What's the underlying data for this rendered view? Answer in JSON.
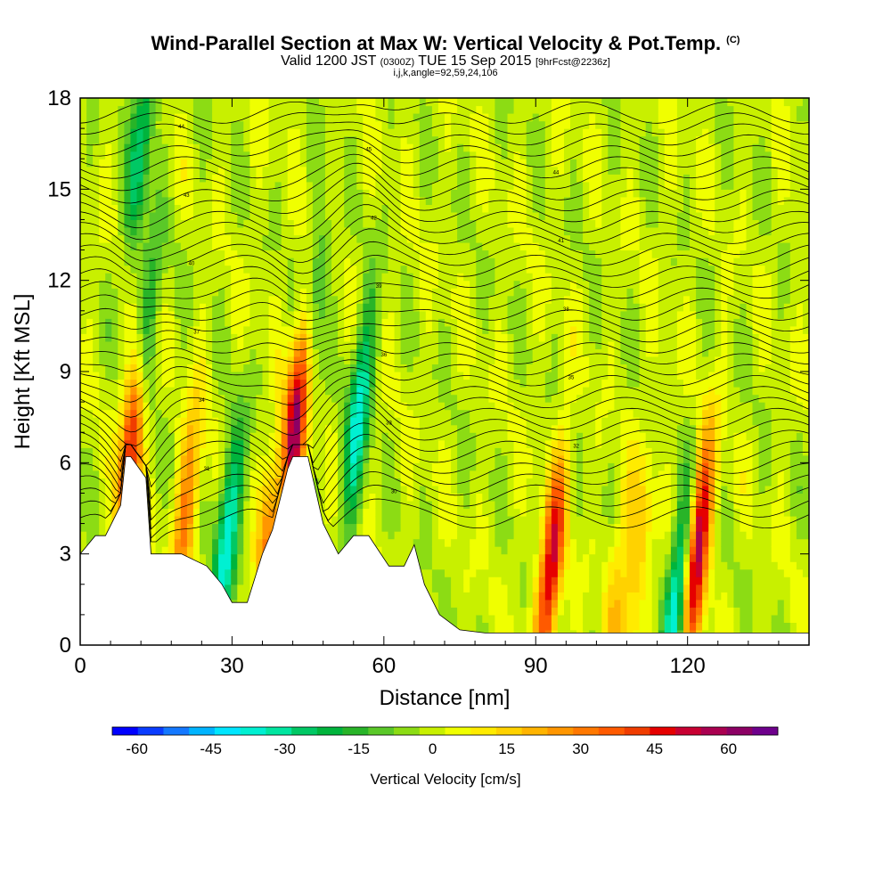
{
  "header": {
    "title": "Wind-Parallel Section at Max W: Vertical Velocity & Pot.Temp.",
    "copyright": "(C)",
    "valid_main": "Valid 1200 JST",
    "valid_z": "(0300Z)",
    "valid_date": "TUE 15 Sep 2015",
    "valid_fcst": "[9hrFcst@2236z]",
    "params": "i,j,k,angle=92,59,24,106"
  },
  "chart_data": {
    "type": "heatmap",
    "xlabel": "Distance [nm]",
    "ylabel": "Height [Kft MSL]",
    "xlim": [
      0,
      144
    ],
    "ylim": [
      0,
      18
    ],
    "xticks": [
      "0",
      "30",
      "60",
      "90",
      "120"
    ],
    "yticks": [
      "0",
      "3",
      "6",
      "9",
      "12",
      "15",
      "18"
    ],
    "colorbar": {
      "label": "Vertical Velocity [cm/s]",
      "tick_labels": [
        "-60",
        "-45",
        "-30",
        "-15",
        "0",
        "15",
        "30",
        "45",
        "60"
      ],
      "range": [
        -65,
        70
      ],
      "colors": [
        "#0000ff",
        "#0a3cff",
        "#1478ff",
        "#00b4ff",
        "#00e6ff",
        "#00f0d2",
        "#00e6a0",
        "#00c864",
        "#00b43c",
        "#28b428",
        "#5ac828",
        "#8cdc14",
        "#c8f000",
        "#f0ff00",
        "#ffeb00",
        "#ffd200",
        "#ffb400",
        "#ff9600",
        "#ff7800",
        "#ff5a00",
        "#f03c00",
        "#e60000",
        "#c80032",
        "#aa0050",
        "#8c0064",
        "#6e008c"
      ]
    },
    "terrain_kft": [
      [
        0,
        3.0
      ],
      [
        3,
        3.6
      ],
      [
        5,
        3.6
      ],
      [
        8,
        4.6
      ],
      [
        9,
        6.2
      ],
      [
        10,
        6.2
      ],
      [
        13,
        5.5
      ],
      [
        14,
        3.0
      ],
      [
        20,
        3.0
      ],
      [
        25,
        2.6
      ],
      [
        28,
        2.0
      ],
      [
        30,
        1.4
      ],
      [
        33,
        1.4
      ],
      [
        36,
        3.0
      ],
      [
        38,
        3.8
      ],
      [
        41,
        5.8
      ],
      [
        42,
        6.2
      ],
      [
        45,
        6.2
      ],
      [
        48,
        4.0
      ],
      [
        51,
        3.0
      ],
      [
        54,
        3.6
      ],
      [
        57,
        3.6
      ],
      [
        61,
        2.6
      ],
      [
        64,
        2.6
      ],
      [
        66,
        3.3
      ],
      [
        68,
        2.0
      ],
      [
        71,
        1.0
      ],
      [
        75,
        0.5
      ],
      [
        80,
        0.4
      ],
      [
        144,
        0.4
      ]
    ],
    "updrafts": [
      {
        "x": 10.5,
        "z": 7.0,
        "w": 66
      },
      {
        "x": 43.0,
        "z": 7.8,
        "w": 70
      },
      {
        "x": 93.0,
        "z": 2.5,
        "w": 52
      },
      {
        "x": 122.0,
        "z": 3.2,
        "w": 60
      },
      {
        "x": 21.0,
        "z": 4.5,
        "w": 30
      },
      {
        "x": 37.0,
        "z": 3.0,
        "w": 28
      },
      {
        "x": 110.0,
        "z": 2.5,
        "w": 18
      },
      {
        "x": 106.0,
        "z": 2.0,
        "w": 14
      }
    ],
    "downdrafts": [
      {
        "x": 12.5,
        "z": 9.5,
        "w": -38
      },
      {
        "x": 29.0,
        "z": 3.5,
        "w": -38
      },
      {
        "x": 45.5,
        "z": 10.5,
        "w": -30
      },
      {
        "x": 55.0,
        "z": 7.5,
        "w": -36
      },
      {
        "x": 118.0,
        "z": 1.5,
        "w": -40
      },
      {
        "x": 12.0,
        "z": 16.5,
        "w": -28
      }
    ],
    "isentrope_labels": [
      "44",
      "45",
      "44",
      "43",
      "42",
      "41",
      "40",
      "39",
      "38",
      "37",
      "36",
      "35",
      "34",
      "33",
      "32",
      "31",
      "30"
    ]
  }
}
